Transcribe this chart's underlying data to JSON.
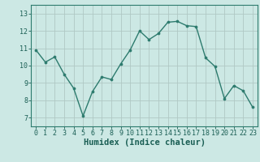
{
  "x": [
    0,
    1,
    2,
    3,
    4,
    5,
    6,
    7,
    8,
    9,
    10,
    11,
    12,
    13,
    14,
    15,
    16,
    17,
    18,
    19,
    20,
    21,
    22,
    23
  ],
  "y": [
    10.9,
    10.2,
    10.5,
    9.5,
    8.7,
    7.1,
    8.5,
    9.35,
    9.2,
    10.1,
    10.9,
    12.0,
    11.5,
    11.85,
    12.5,
    12.55,
    12.3,
    12.25,
    10.45,
    9.95,
    8.1,
    8.85,
    8.55,
    7.6
  ],
  "line_color": "#2d7b6e",
  "marker": "o",
  "marker_size": 2.2,
  "line_width": 1.0,
  "bg_color": "#cce8e4",
  "grid_color": "#b0c8c4",
  "xlabel": "Humidex (Indice chaleur)",
  "xlabel_fontsize": 7.5,
  "tick_fontsize": 6,
  "ylim": [
    6.5,
    13.5
  ],
  "xlim": [
    -0.5,
    23.5
  ],
  "yticks": [
    7,
    8,
    9,
    10,
    11,
    12,
    13
  ],
  "xticks": [
    0,
    1,
    2,
    3,
    4,
    5,
    6,
    7,
    8,
    9,
    10,
    11,
    12,
    13,
    14,
    15,
    16,
    17,
    18,
    19,
    20,
    21,
    22,
    23
  ],
  "spine_color": "#2d7b6e",
  "text_color": "#1a5e54"
}
